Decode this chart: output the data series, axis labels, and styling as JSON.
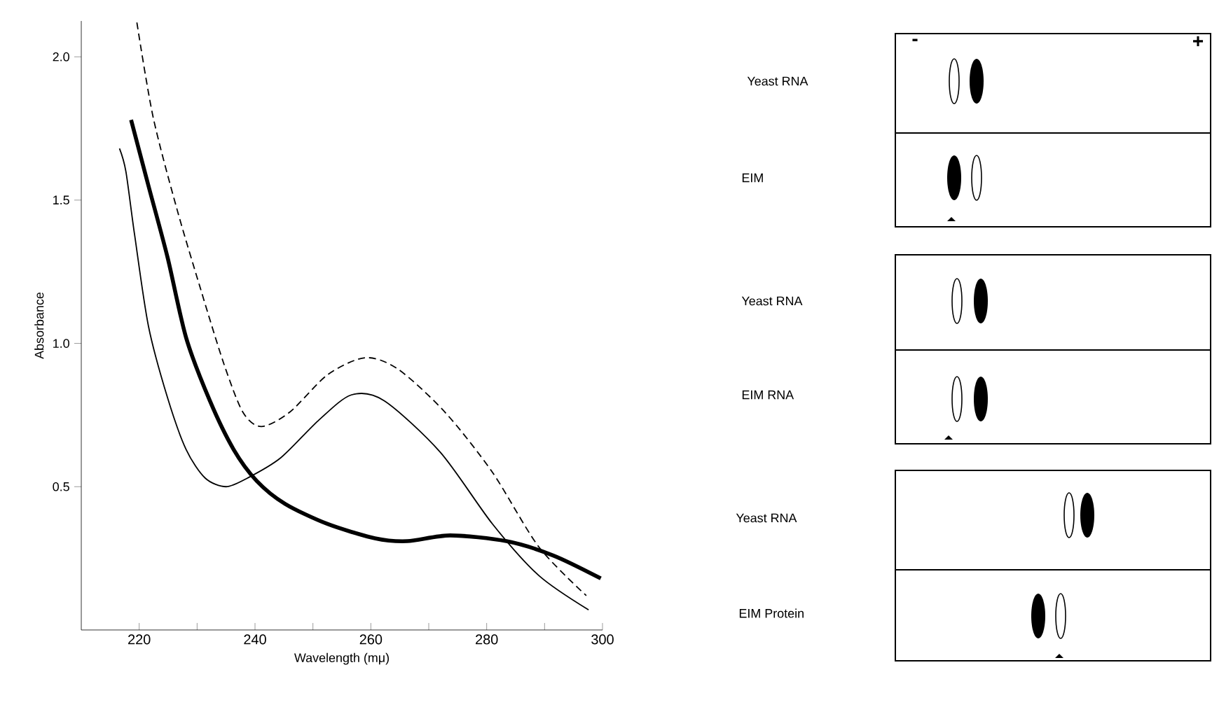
{
  "chart_data": [
    {
      "type": "line",
      "xlabel": "Wavelength  (mμ)",
      "ylabel": "Absorbance",
      "xlim": [
        210,
        300
      ],
      "ylim": [
        0,
        2.125
      ],
      "xticks": [
        220,
        {
          "value": 230,
          "label": null
        },
        240,
        {
          "value": 250,
          "label": null
        },
        260,
        {
          "value": 270,
          "label": null
        },
        280,
        {
          "value": 290,
          "label": null
        },
        300
      ],
      "yticks": [
        0.5,
        {
          "value": 1.0,
          "label": "1.0"
        },
        1.5,
        {
          "value": 2.0,
          "label": "2.0"
        }
      ],
      "marker": "none",
      "series": [
        {
          "color": "#000000",
          "line_style": "dashed",
          "x": [
            219.6,
            222.4,
            226.5,
            230.6,
            234.6,
            237.9,
            241.1,
            246.0,
            252.5,
            259.0,
            264.7,
            272.8,
            281.0,
            289.0,
            297.2
          ],
          "values": [
            2.12,
            1.79,
            1.47,
            1.19,
            0.93,
            0.76,
            0.71,
            0.76,
            0.89,
            0.95,
            0.91,
            0.76,
            0.55,
            0.29,
            0.12
          ]
        },
        {
          "color": "#000000",
          "line_style": "solid",
          "x": [
            216.6,
            217.7,
            219.2,
            221.6,
            224.9,
            228.1,
            231.4,
            235.0,
            238.7,
            244.4,
            250.9,
            256.6,
            262.3,
            272.0,
            281.0,
            289.0,
            297.6
          ],
          "values": [
            1.68,
            1.6,
            1.38,
            1.06,
            0.81,
            0.63,
            0.53,
            0.5,
            0.53,
            0.6,
            0.73,
            0.82,
            0.8,
            0.62,
            0.37,
            0.19,
            0.07
          ]
        },
        {
          "color": "#000000",
          "line_style": "solid",
          "x": [
            218.6,
            221.6,
            224.9,
            228.1,
            232.2,
            236.3,
            240.3,
            245.2,
            252.5,
            260.7,
            266.3,
            273.7,
            283.4,
            291.5,
            299.7
          ],
          "values": [
            1.78,
            1.55,
            1.3,
            1.02,
            0.8,
            0.63,
            0.52,
            0.44,
            0.37,
            0.32,
            0.31,
            0.33,
            0.31,
            0.26,
            0.18
          ]
        }
      ]
    },
    {
      "type": "other",
      "annotations": [
        "Yeast  RNA",
        "EIM",
        "Yeast  RNA",
        "EIM  RNA",
        "Yeast  RNA",
        "EIM Protein",
        "-",
        "+"
      ]
    }
  ]
}
